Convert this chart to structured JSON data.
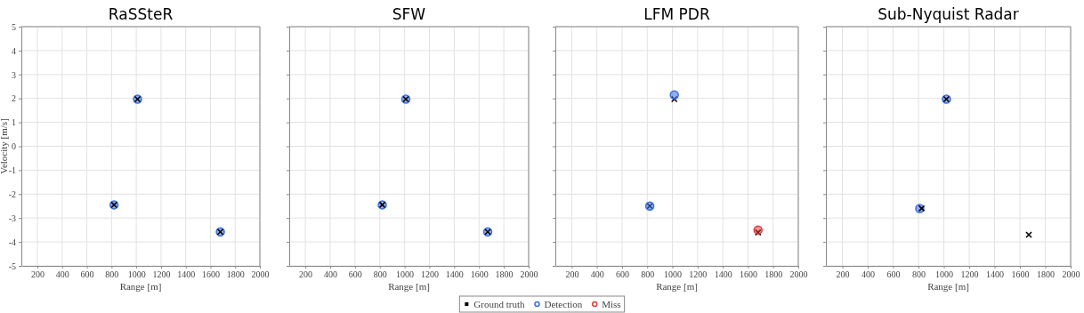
{
  "chart_data": [
    {
      "type": "scatter",
      "title": "RaSSteR",
      "xlabel": "Range [m]",
      "ylabel": "Velocity [m/s]",
      "xlim": [
        70,
        2000
      ],
      "ylim": [
        -5,
        5
      ],
      "xticks": [
        200,
        400,
        600,
        800,
        1000,
        1200,
        1400,
        1600,
        1800,
        2000
      ],
      "yticks": [
        -5,
        -4,
        -3,
        -2,
        -1,
        0,
        1,
        2,
        3,
        4,
        5
      ],
      "grid": true,
      "series": [
        {
          "color": "#3b6fe0",
          "marker": "circle",
          "x": [
            1010,
            820,
            1680
          ],
          "values": [
            1.97,
            -2.45,
            -3.58
          ]
        },
        {
          "color": "#000000",
          "marker": "cross",
          "x": [
            1010,
            820,
            1680
          ],
          "values": [
            1.97,
            -2.45,
            -3.58
          ]
        }
      ]
    },
    {
      "type": "scatter",
      "title": "SFW",
      "xlabel": "Range [m]",
      "xlim": [
        70,
        2000
      ],
      "ylim": [
        -5,
        5
      ],
      "xticks": [
        200,
        400,
        600,
        800,
        1000,
        1200,
        1400,
        1600,
        1800,
        2000
      ],
      "yticks": [
        -5,
        -4,
        -3,
        -2,
        -1,
        0,
        1,
        2,
        3,
        4,
        5
      ],
      "tick_labels": "x",
      "grid": true,
      "series": [
        {
          "color": "#3b6fe0",
          "marker": "circle",
          "x": [
            1010,
            820,
            1670
          ],
          "values": [
            1.97,
            -2.45,
            -3.58
          ]
        },
        {
          "color": "#000000",
          "marker": "cross",
          "x": [
            1010,
            820,
            1670
          ],
          "values": [
            1.97,
            -2.45,
            -3.58
          ]
        }
      ]
    },
    {
      "type": "scatter",
      "title": "LFM PDR",
      "xlabel": "Range [m]",
      "xlim": [
        70,
        2000
      ],
      "ylim": [
        -5,
        5
      ],
      "xticks": [
        200,
        400,
        600,
        800,
        1000,
        1200,
        1400,
        1600,
        1800,
        2000
      ],
      "yticks": [
        -5,
        -4,
        -3,
        -2,
        -1,
        0,
        1,
        2,
        3,
        4,
        5
      ],
      "tick_labels": "x",
      "grid": true,
      "legend": "bottom",
      "series": [
        {
          "name": "Ground truth",
          "color": "#000000",
          "marker": "cross",
          "x": [
            1015,
            820,
            1680
          ],
          "values": [
            1.97,
            -2.5,
            -3.6
          ]
        },
        {
          "name": "Detection",
          "color": "#3b6fe0",
          "marker": "circle",
          "x": [
            1015,
            820
          ],
          "values": [
            2.15,
            -2.5
          ]
        },
        {
          "name": "Miss",
          "color": "#e03c3c",
          "marker": "circle",
          "x": [
            1680
          ],
          "values": [
            -3.5
          ]
        }
      ]
    },
    {
      "type": "scatter",
      "title": "Sub-Nyquist Radar",
      "xlabel": "Range [m]",
      "xlim": [
        70,
        2000
      ],
      "ylim": [
        -5,
        5
      ],
      "xticks": [
        200,
        400,
        600,
        800,
        1000,
        1200,
        1400,
        1600,
        1800,
        2000
      ],
      "yticks": [
        -5,
        -4,
        -3,
        -2,
        -1,
        0,
        1,
        2,
        3,
        4,
        5
      ],
      "tick_labels": "x",
      "grid": true,
      "series": [
        {
          "color": "#3b6fe0",
          "marker": "circle",
          "x": [
            1020,
            810
          ],
          "values": [
            1.97,
            -2.6
          ]
        },
        {
          "color": "#000000",
          "marker": "cross",
          "x": [
            1020,
            825,
            1670
          ],
          "values": [
            1.97,
            -2.6,
            -3.7
          ]
        }
      ]
    }
  ]
}
